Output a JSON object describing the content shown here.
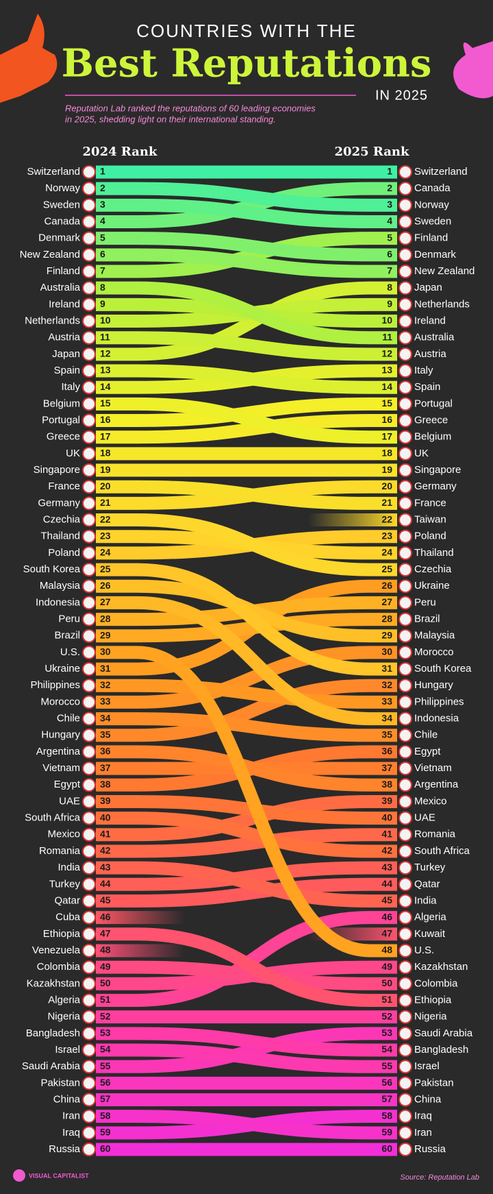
{
  "chart_data": {
    "type": "bump",
    "title_top": "COUNTRIES WITH THE",
    "title": "Best Reputations",
    "title_suffix": "IN 2025",
    "subtitle": [
      "Reputation Lab ranked the reputations of 60 leading economies",
      "in 2025, shedding light on their international standing."
    ],
    "categories": [
      "2024 Rank",
      "2025 Rank"
    ],
    "palette": [
      "#3ff0a4",
      "#b6f03c",
      "#f4f028",
      "#ffd22c",
      "#ffa020",
      "#ff7a30",
      "#ff5a5e",
      "#ff3ca6",
      "#f22ed8"
    ],
    "series": [
      {
        "name": "Switzerland",
        "values": [
          1,
          1
        ]
      },
      {
        "name": "Norway",
        "values": [
          2,
          3
        ]
      },
      {
        "name": "Sweden",
        "values": [
          3,
          4
        ]
      },
      {
        "name": "Canada",
        "values": [
          4,
          2
        ]
      },
      {
        "name": "Denmark",
        "values": [
          5,
          6
        ]
      },
      {
        "name": "New Zealand",
        "values": [
          6,
          7
        ]
      },
      {
        "name": "Finland",
        "values": [
          7,
          5
        ]
      },
      {
        "name": "Australia",
        "values": [
          8,
          11
        ]
      },
      {
        "name": "Ireland",
        "values": [
          9,
          10
        ]
      },
      {
        "name": "Netherlands",
        "values": [
          10,
          9
        ]
      },
      {
        "name": "Austria",
        "values": [
          11,
          12
        ]
      },
      {
        "name": "Japan",
        "values": [
          12,
          8
        ]
      },
      {
        "name": "Spain",
        "values": [
          13,
          14
        ]
      },
      {
        "name": "Italy",
        "values": [
          14,
          13
        ]
      },
      {
        "name": "Belgium",
        "values": [
          15,
          17
        ]
      },
      {
        "name": "Portugal",
        "values": [
          16,
          15
        ]
      },
      {
        "name": "Greece",
        "values": [
          17,
          16
        ]
      },
      {
        "name": "UK",
        "values": [
          18,
          18
        ]
      },
      {
        "name": "Singapore",
        "values": [
          19,
          19
        ]
      },
      {
        "name": "France",
        "values": [
          20,
          21
        ]
      },
      {
        "name": "Germany",
        "values": [
          21,
          20
        ]
      },
      {
        "name": "Czechia",
        "values": [
          22,
          25
        ]
      },
      {
        "name": "Thailand",
        "values": [
          23,
          24
        ]
      },
      {
        "name": "Poland",
        "values": [
          24,
          23
        ]
      },
      {
        "name": "South Korea",
        "values": [
          25,
          31
        ]
      },
      {
        "name": "Malaysia",
        "values": [
          26,
          29
        ]
      },
      {
        "name": "Indonesia",
        "values": [
          27,
          34
        ]
      },
      {
        "name": "Peru",
        "values": [
          28,
          27
        ]
      },
      {
        "name": "Brazil",
        "values": [
          29,
          28
        ]
      },
      {
        "name": "U.S.",
        "values": [
          30,
          48
        ]
      },
      {
        "name": "Ukraine",
        "values": [
          31,
          26
        ]
      },
      {
        "name": "Philippines",
        "values": [
          32,
          33
        ]
      },
      {
        "name": "Morocco",
        "values": [
          33,
          30
        ]
      },
      {
        "name": "Chile",
        "values": [
          34,
          35
        ]
      },
      {
        "name": "Hungary",
        "values": [
          35,
          32
        ]
      },
      {
        "name": "Argentina",
        "values": [
          36,
          38
        ]
      },
      {
        "name": "Vietnam",
        "values": [
          37,
          37
        ]
      },
      {
        "name": "Egypt",
        "values": [
          38,
          36
        ]
      },
      {
        "name": "UAE",
        "values": [
          39,
          40
        ]
      },
      {
        "name": "South Africa",
        "values": [
          40,
          42
        ]
      },
      {
        "name": "Mexico",
        "values": [
          41,
          39
        ]
      },
      {
        "name": "Romania",
        "values": [
          42,
          41
        ]
      },
      {
        "name": "India",
        "values": [
          43,
          45
        ]
      },
      {
        "name": "Turkey",
        "values": [
          44,
          43
        ]
      },
      {
        "name": "Qatar",
        "values": [
          45,
          44
        ]
      },
      {
        "name": "Cuba",
        "values": [
          46,
          null
        ]
      },
      {
        "name": "Ethiopia",
        "values": [
          47,
          51
        ]
      },
      {
        "name": "Venezuela",
        "values": [
          48,
          null
        ]
      },
      {
        "name": "Colombia",
        "values": [
          49,
          50
        ]
      },
      {
        "name": "Kazakhstan",
        "values": [
          50,
          49
        ]
      },
      {
        "name": "Algeria",
        "values": [
          51,
          46
        ]
      },
      {
        "name": "Nigeria",
        "values": [
          52,
          52
        ]
      },
      {
        "name": "Bangladesh",
        "values": [
          53,
          54
        ]
      },
      {
        "name": "Israel",
        "values": [
          54,
          55
        ]
      },
      {
        "name": "Saudi Arabia",
        "values": [
          55,
          53
        ]
      },
      {
        "name": "Pakistan",
        "values": [
          56,
          56
        ]
      },
      {
        "name": "China",
        "values": [
          57,
          57
        ]
      },
      {
        "name": "Iran",
        "values": [
          58,
          59
        ]
      },
      {
        "name": "Iraq",
        "values": [
          59,
          58
        ]
      },
      {
        "name": "Russia",
        "values": [
          60,
          60
        ]
      },
      {
        "name": "Taiwan",
        "values": [
          null,
          22
        ]
      },
      {
        "name": "Kuwait",
        "values": [
          null,
          47
        ]
      }
    ],
    "brand": "VISUAL CAPITALIST",
    "source": "Source: Reputation Lab"
  }
}
